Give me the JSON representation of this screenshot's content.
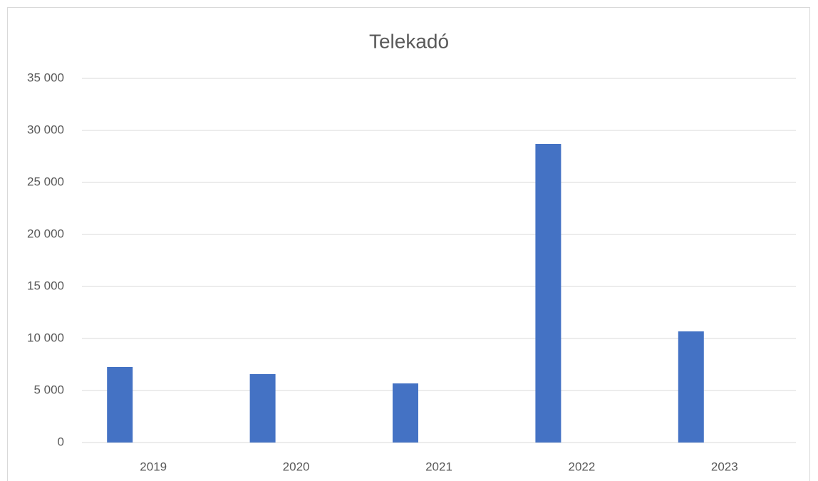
{
  "chart_data": {
    "type": "bar",
    "title": "Telekadó",
    "categories": [
      "2019",
      "2020",
      "2021",
      "2022",
      "2023"
    ],
    "values": [
      7260,
      6580,
      5680,
      28700,
      10680
    ],
    "color": "#4472c4",
    "ylim": [
      0,
      35000
    ],
    "yticks": [
      0,
      {
        "value": 5000,
        "label": "5 000"
      },
      {
        "value": 10000,
        "label": "10 000"
      },
      {
        "value": 15000,
        "label": "15 000"
      },
      {
        "value": 20000,
        "label": "20 000"
      },
      {
        "value": 25000,
        "label": "25 000"
      },
      {
        "value": 30000,
        "label": "30 000"
      },
      {
        "value": 35000,
        "label": "35 000"
      }
    ],
    "grid": true
  }
}
